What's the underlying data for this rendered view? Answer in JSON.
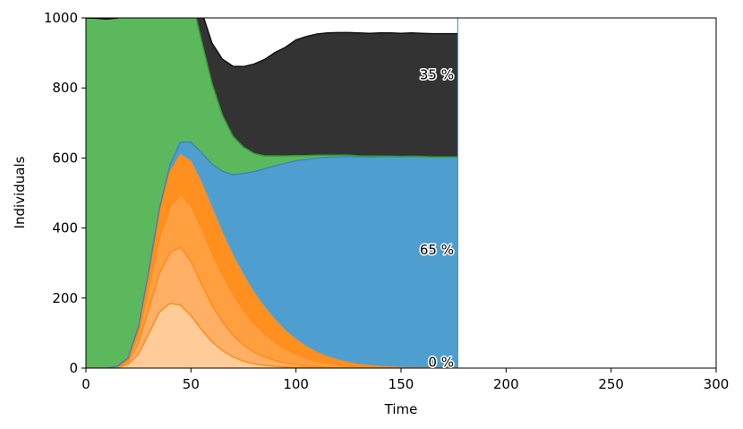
{
  "chart_data": {
    "type": "area",
    "title": "",
    "xlabel": "Time",
    "ylabel": "Individuals",
    "xlim": [
      0,
      300
    ],
    "ylim": [
      0,
      1000
    ],
    "xticks": [
      0,
      50,
      100,
      150,
      200,
      250,
      300
    ],
    "yticks": [
      0,
      200,
      400,
      600,
      800,
      1000
    ],
    "grid": false,
    "x": [
      0,
      5,
      10,
      15,
      20,
      25,
      30,
      35,
      40,
      45,
      50,
      55,
      60,
      65,
      70,
      75,
      80,
      85,
      90,
      95,
      100,
      105,
      110,
      115,
      120,
      125,
      130,
      135,
      140,
      145,
      150,
      155,
      160,
      165,
      170,
      177
    ],
    "series": [
      {
        "color": "#ffcc99",
        "values": [
          0,
          0,
          0,
          2,
          10,
          40,
          100,
          160,
          185,
          180,
          150,
          110,
          75,
          50,
          32,
          20,
          12,
          8,
          5,
          3,
          2,
          1,
          1,
          0,
          0,
          0,
          0,
          0,
          0,
          0,
          0,
          0,
          0,
          0,
          0,
          0
        ]
      },
      {
        "color": "#ffb066",
        "values": [
          0,
          0,
          0,
          1,
          7,
          30,
          70,
          110,
          145,
          165,
          155,
          130,
          105,
          82,
          62,
          46,
          34,
          24,
          17,
          12,
          8,
          5,
          3,
          2,
          1,
          1,
          0,
          0,
          0,
          0,
          0,
          0,
          0,
          0,
          0,
          0
        ]
      },
      {
        "color": "#ff9f40",
        "values": [
          0,
          0,
          0,
          1,
          6,
          25,
          60,
          100,
          130,
          150,
          160,
          160,
          150,
          135,
          118,
          100,
          82,
          66,
          52,
          40,
          30,
          22,
          16,
          11,
          8,
          5,
          3,
          2,
          1,
          1,
          0,
          0,
          0,
          0,
          0,
          0
        ]
      },
      {
        "color": "#ff901f",
        "values": [
          0,
          0,
          0,
          1,
          5,
          20,
          45,
          75,
          100,
          115,
          125,
          130,
          128,
          120,
          110,
          100,
          88,
          76,
          64,
          52,
          42,
          33,
          25,
          19,
          14,
          10,
          7,
          5,
          3,
          2,
          1,
          1,
          0,
          0,
          0,
          0
        ]
      },
      {
        "color": "#4e9fd0",
        "values": [
          0,
          0,
          0,
          0,
          0,
          2,
          5,
          10,
          20,
          35,
          55,
          85,
          125,
          175,
          230,
          290,
          345,
          395,
          440,
          478,
          510,
          535,
          555,
          570,
          580,
          588,
          593,
          596,
          599,
          601,
          602,
          603,
          603,
          603,
          603,
          603
        ]
      },
      {
        "color": "#5cb85c",
        "values": [
          1000,
          999,
          997,
          994,
          980,
          950,
          890,
          800,
          680,
          540,
          420,
          320,
          230,
          160,
          110,
          75,
          52,
          37,
          28,
          21,
          15,
          11,
          8,
          6,
          5,
          4,
          3,
          2,
          2,
          1,
          1,
          1,
          1,
          0,
          0,
          0
        ]
      },
      {
        "color": "#333333",
        "values": [
          0,
          0,
          0,
          1,
          2,
          3,
          5,
          10,
          20,
          35,
          55,
          85,
          115,
          160,
          200,
          230,
          255,
          275,
          295,
          310,
          330,
          340,
          346,
          349,
          350,
          350,
          351,
          351,
          352,
          352,
          352,
          352,
          352,
          352,
          352,
          352
        ]
      }
    ],
    "labels": [
      {
        "text": "35 %",
        "x": 176,
        "y": 837
      },
      {
        "text": "65 %",
        "x": 176,
        "y": 337
      },
      {
        "text": "0 %",
        "x": 176,
        "y": 17
      }
    ]
  }
}
